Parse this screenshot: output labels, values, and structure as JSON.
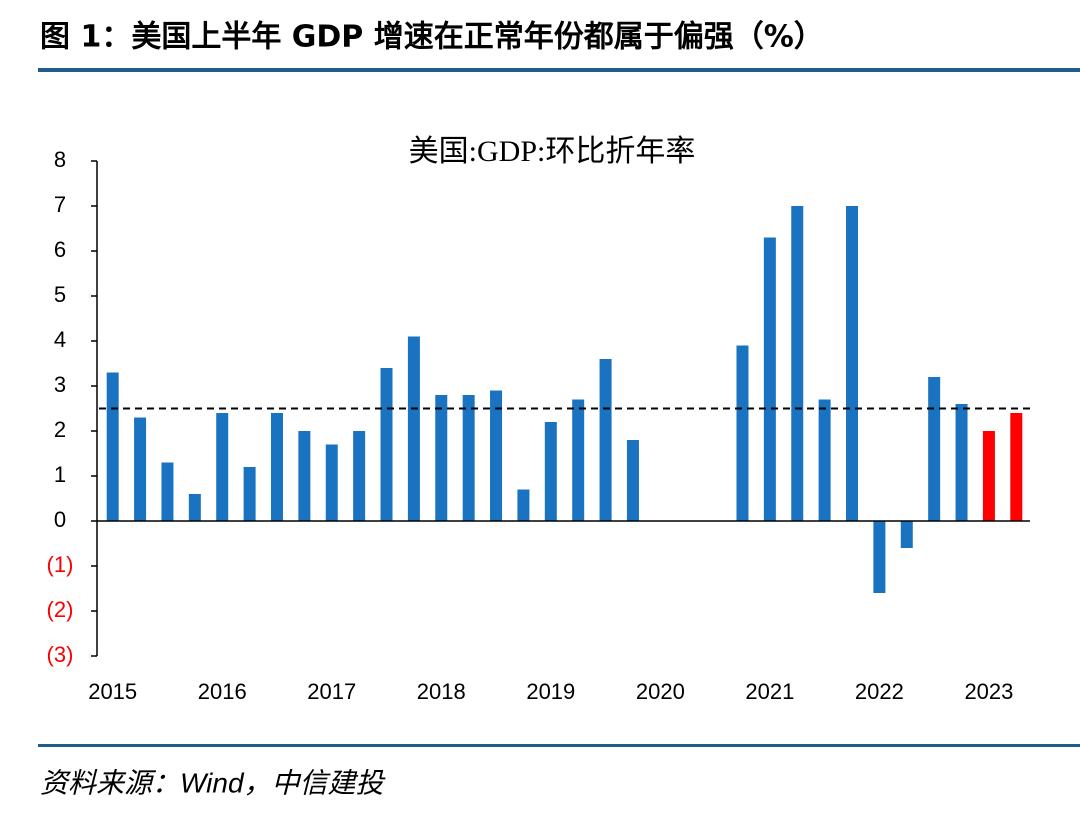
{
  "header": {
    "title": "图 1：美国上半年 GDP 增速在正常年份都属于偏强（%）"
  },
  "footer": {
    "source": "资料来源：Wind，中信建投"
  },
  "chart_data": {
    "type": "bar",
    "title": "美国:GDP:环比折年率",
    "categories": [
      "2015",
      null,
      null,
      null,
      "2016",
      null,
      null,
      null,
      "2017",
      null,
      null,
      null,
      "2018",
      null,
      null,
      null,
      "2019",
      null,
      null,
      null,
      "2020",
      null,
      null,
      null,
      "2021",
      null,
      null,
      null,
      "2022",
      null,
      null,
      null,
      "2023",
      null
    ],
    "values": [
      3.3,
      2.3,
      1.3,
      0.6,
      2.4,
      1.2,
      2.4,
      2.0,
      1.7,
      2.0,
      3.4,
      4.1,
      2.8,
      2.8,
      2.9,
      0.7,
      2.2,
      2.7,
      3.6,
      1.8,
      null,
      null,
      null,
      3.9,
      6.3,
      7.0,
      2.7,
      7.0,
      -1.6,
      -0.6,
      3.2,
      2.6,
      2.0,
      2.4
    ],
    "colors": [
      "#1a73c1",
      "#1a73c1",
      "#1a73c1",
      "#1a73c1",
      "#1a73c1",
      "#1a73c1",
      "#1a73c1",
      "#1a73c1",
      "#1a73c1",
      "#1a73c1",
      "#1a73c1",
      "#1a73c1",
      "#1a73c1",
      "#1a73c1",
      "#1a73c1",
      "#1a73c1",
      "#1a73c1",
      "#1a73c1",
      "#1a73c1",
      "#1a73c1",
      "#1a73c1",
      "#1a73c1",
      "#1a73c1",
      "#1a73c1",
      "#1a73c1",
      "#1a73c1",
      "#1a73c1",
      "#1a73c1",
      "#1a73c1",
      "#1a73c1",
      "#1a73c1",
      "#1a73c1",
      "#ff0000",
      "#ff0000"
    ],
    "reference_line": 2.5,
    "ylim": [
      -3,
      8
    ],
    "yticks": [
      {
        "value": -3,
        "label": "(3)"
      },
      {
        "value": -2,
        "label": "(2)"
      },
      {
        "value": -1,
        "label": "(1)"
      },
      0,
      1,
      2,
      3,
      4,
      5,
      6,
      7,
      8
    ],
    "negative_tick_color": "#ff0000"
  }
}
